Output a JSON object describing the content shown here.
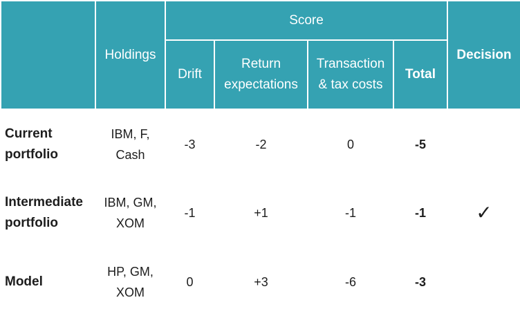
{
  "header": {
    "score_group": "Score",
    "holdings": "Holdings",
    "drift": "Drift",
    "return_expectations": "Return expectations",
    "transaction_costs": "Transaction & tax costs",
    "total": "Total",
    "decision": "Decision"
  },
  "colors": {
    "header_bg": "#35a2b2",
    "header_text": "#ffffff"
  },
  "rows": [
    {
      "label": "Current portfolio",
      "holdings": "IBM, F, Cash",
      "drift": "-3",
      "return": "-2",
      "costs": "0",
      "total": "-5",
      "decision": ""
    },
    {
      "label": "Intermediate portfolio",
      "holdings": "IBM, GM, XOM",
      "drift": "-1",
      "return": "+1",
      "costs": "-1",
      "total": "-1",
      "decision": "✓"
    },
    {
      "label": "Model",
      "holdings": "HP, GM, XOM",
      "drift": "0",
      "return": "+3",
      "costs": "-6",
      "total": "-3",
      "decision": ""
    }
  ]
}
